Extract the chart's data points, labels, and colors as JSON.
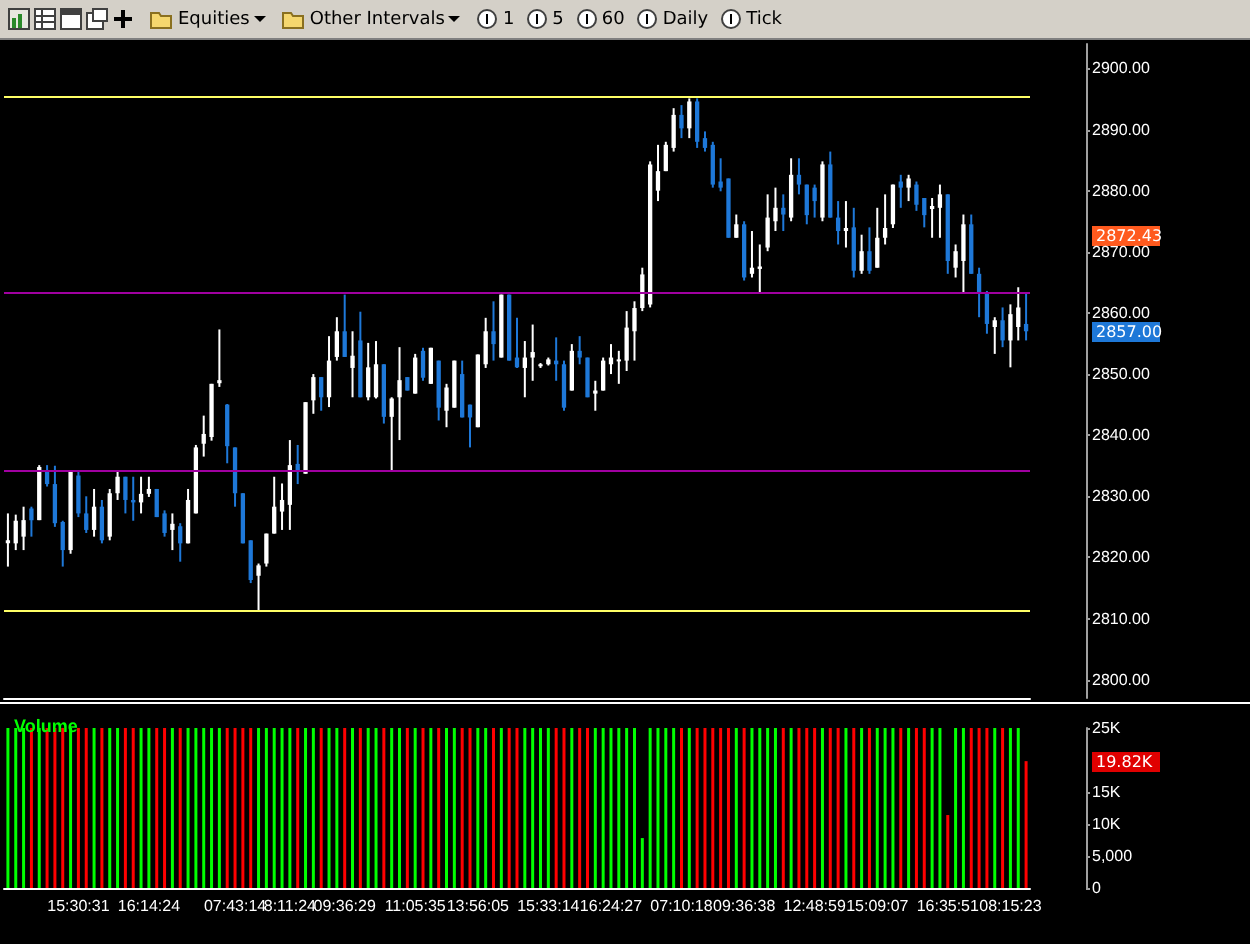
{
  "chart_data": [
    {
      "type": "candlestick",
      "categories": [
        null,
        null,
        null,
        null,
        null,
        null,
        null,
        null,
        null,
        null,
        null,
        null,
        null,
        null,
        null,
        null,
        null,
        null,
        null,
        null,
        null,
        null,
        null,
        null,
        null,
        null,
        null,
        null,
        null,
        null,
        null,
        null,
        null,
        null,
        null,
        null,
        null,
        null,
        null,
        null,
        null,
        null,
        null,
        null,
        null,
        null,
        null,
        null,
        null,
        null,
        null,
        null,
        null,
        null,
        null,
        null,
        null,
        null,
        null,
        null,
        null,
        null,
        null,
        null,
        null,
        null,
        null,
        null,
        null,
        null,
        null,
        null,
        null,
        null,
        null,
        null,
        null,
        null,
        null,
        null,
        null,
        null,
        null,
        null,
        null,
        null,
        null,
        null,
        null,
        null,
        null,
        null,
        null,
        null,
        null,
        null,
        null,
        null,
        null,
        null,
        null,
        null,
        null,
        null,
        null,
        null,
        null,
        null,
        null,
        null,
        null,
        null,
        null,
        null,
        null,
        null,
        null,
        null,
        null,
        null,
        null,
        null,
        null,
        null,
        null,
        null,
        null,
        null,
        null,
        null,
        null
      ],
      "ohlc": [
        [
          2822.3,
          2827.2,
          2818.5,
          2822.8
        ],
        [
          2822.3,
          2827,
          2821.2,
          2826
        ],
        [
          2823.4,
          2828.3,
          2821.2,
          2826.1
        ],
        [
          2828,
          2828.3,
          2823.4,
          2826.1
        ],
        [
          2826.1,
          2835.1,
          2826.1,
          2834.8
        ],
        [
          2834,
          2835.1,
          2831.6,
          2832
        ],
        [
          2832,
          2835,
          2825,
          2825.6
        ],
        [
          2825.8,
          2826,
          2818.5,
          2821.2
        ],
        [
          2821.2,
          2834,
          2820.6,
          2834
        ],
        [
          2833.4,
          2834,
          2826.6,
          2827.2
        ],
        [
          2827.2,
          2830,
          2824,
          2824.5
        ],
        [
          2824.5,
          2831.2,
          2823.4,
          2828.3
        ],
        [
          2828.3,
          2829.4,
          2822.3,
          2822.8
        ],
        [
          2823.4,
          2831.2,
          2822.8,
          2830.5
        ],
        [
          2830.5,
          2834,
          2829.4,
          2833.2
        ],
        [
          2833.2,
          2833.2,
          2827.2,
          2829.4
        ],
        [
          2829.4,
          2833.2,
          2826,
          2829
        ],
        [
          2829,
          2833.2,
          2827.2,
          2830.4
        ],
        [
          2830.4,
          2833.2,
          2829.9,
          2831.2
        ],
        [
          2831.2,
          2831.2,
          2826.6,
          2826.6
        ],
        [
          2827.2,
          2827.7,
          2823.4,
          2824
        ],
        [
          2824.5,
          2827.2,
          2821.2,
          2825.5
        ],
        [
          2825.1,
          2825.6,
          2819.3,
          2822.3
        ],
        [
          2822.3,
          2831.2,
          2822.3,
          2829.4
        ],
        [
          2827.2,
          2838.4,
          2827.2,
          2838
        ],
        [
          2838.6,
          2843.2,
          2836.5,
          2840.2
        ],
        [
          2839.7,
          2848.4,
          2839.1,
          2848.4
        ],
        [
          2848.5,
          2857.3,
          2847.9,
          2849
        ],
        [
          2845,
          2845.1,
          2835.4,
          2838.2
        ],
        [
          2838,
          2838,
          2828.3,
          2830.5
        ],
        [
          2830.5,
          2830.5,
          2822.3,
          2822.3
        ],
        [
          2822.8,
          2822.8,
          2815.8,
          2816.3
        ],
        [
          2817,
          2819,
          2811.4,
          2818.7
        ],
        [
          2819,
          2823.9,
          2818.5,
          2823.9
        ],
        [
          2823.9,
          2833.2,
          2823.9,
          2828.3
        ],
        [
          2827.5,
          2832.1,
          2824.5,
          2829.4
        ],
        [
          2828.6,
          2839.2,
          2824.5,
          2835.1
        ],
        [
          2835.3,
          2838.4,
          2832,
          2834
        ],
        [
          2833.7,
          2845.4,
          2833.7,
          2845.4
        ],
        [
          2845.7,
          2850,
          2843.5,
          2849.5
        ],
        [
          2849.5,
          2849.5,
          2844,
          2846.2
        ],
        [
          2846.2,
          2856.2,
          2844.6,
          2852.2
        ],
        [
          2852.8,
          2859.3,
          2852.2,
          2857
        ],
        [
          2857,
          2863,
          2852.8,
          2852.8
        ],
        [
          2851,
          2857,
          2846.2,
          2853
        ],
        [
          2855.5,
          2860.2,
          2846.2,
          2846.2
        ],
        [
          2846.2,
          2855.1,
          2845.7,
          2851.1
        ],
        [
          2846.2,
          2855.4,
          2846,
          2851.6
        ],
        [
          2851.6,
          2851.6,
          2841.9,
          2843
        ],
        [
          2843,
          2846.2,
          2834.2,
          2846
        ],
        [
          2846.2,
          2854.4,
          2839.2,
          2849
        ],
        [
          2849.5,
          2849.5,
          2847.3,
          2847.3
        ],
        [
          2846.8,
          2853.3,
          2846.8,
          2852.7
        ],
        [
          2853.8,
          2854.3,
          2848.9,
          2849.4
        ],
        [
          2848.4,
          2854.3,
          2848.4,
          2854.3
        ],
        [
          2852.2,
          2852.2,
          2842.4,
          2844.5
        ],
        [
          2844,
          2848.4,
          2841.3,
          2847.8
        ],
        [
          2844.5,
          2852.2,
          2844.5,
          2852.2
        ],
        [
          2850,
          2852.2,
          2842.9,
          2842.9
        ],
        [
          2845,
          2845,
          2838,
          2842.9
        ],
        [
          2841.3,
          2853.2,
          2841.3,
          2853.2
        ],
        [
          2851.6,
          2859.2,
          2851,
          2857
        ],
        [
          2857,
          2861.9,
          2852.2,
          2854.9
        ],
        [
          2852.7,
          2863,
          2852.7,
          2863
        ],
        [
          2863,
          2863,
          2852.2,
          2852.2
        ],
        [
          2852.7,
          2859.2,
          2851,
          2851.1
        ],
        [
          2851,
          2855.4,
          2846.2,
          2852.7
        ],
        [
          2852.7,
          2858.1,
          2848.9,
          2853.6
        ],
        [
          2851.3,
          2851.8,
          2851,
          2851.6
        ],
        [
          2851.6,
          2852.7,
          2851.4,
          2852.4
        ],
        [
          2852.2,
          2856,
          2848.9,
          2851.6
        ],
        [
          2851.6,
          2852.2,
          2844,
          2844.5
        ],
        [
          2847.3,
          2854.9,
          2847.3,
          2853.8
        ],
        [
          2853.8,
          2856.2,
          2851.6,
          2852.7
        ],
        [
          2852.7,
          2852.7,
          2846.2,
          2846.2
        ],
        [
          2846.8,
          2848.9,
          2844,
          2847.3
        ],
        [
          2847.3,
          2852.7,
          2847.3,
          2852.2
        ],
        [
          2851.6,
          2854.9,
          2850,
          2852.7
        ],
        [
          2852.2,
          2853.8,
          2848.4,
          2852.4
        ],
        [
          2852.2,
          2860.3,
          2850.5,
          2857.6
        ],
        [
          2857,
          2861.9,
          2852.2,
          2860.8
        ],
        [
          2860.8,
          2867.4,
          2860.3,
          2866.3
        ],
        [
          2861.4,
          2884.8,
          2860.9,
          2884.3
        ],
        [
          2880,
          2887.5,
          2878.3,
          2883.2
        ],
        [
          2883.2,
          2888,
          2883.2,
          2887.5
        ],
        [
          2887,
          2893.5,
          2886.4,
          2892.4
        ],
        [
          2892.4,
          2894,
          2888.6,
          2890.2
        ],
        [
          2890.2,
          2895.1,
          2888.6,
          2894.6
        ],
        [
          2894.6,
          2895.1,
          2887,
          2888
        ],
        [
          2888.6,
          2889.7,
          2886.4,
          2887
        ],
        [
          2887.5,
          2888,
          2880.5,
          2881
        ],
        [
          2881.5,
          2885.3,
          2879.9,
          2880.5
        ],
        [
          2882,
          2882,
          2872.3,
          2872.3
        ],
        [
          2872.3,
          2876.1,
          2872.3,
          2874.5
        ],
        [
          2874.5,
          2875,
          2865.3,
          2865.8
        ],
        [
          2866.4,
          2873.4,
          2865.8,
          2867.4
        ],
        [
          2867.2,
          2871.2,
          2863.1,
          2867.6
        ],
        [
          2870.7,
          2879.4,
          2870.1,
          2875.6
        ],
        [
          2875,
          2880.5,
          2873.4,
          2877.2
        ],
        [
          2877.2,
          2879.4,
          2873.4,
          2876.1
        ],
        [
          2875.6,
          2885.3,
          2875,
          2882.6
        ],
        [
          2882.6,
          2885.3,
          2879.4,
          2881
        ],
        [
          2881,
          2881,
          2874.5,
          2876
        ],
        [
          2880.5,
          2881,
          2875.6,
          2878.3
        ],
        [
          2875.6,
          2884.8,
          2875,
          2884.3
        ],
        [
          2884.3,
          2886.4,
          2875.6,
          2875.6
        ],
        [
          2875.6,
          2878.3,
          2871.2,
          2873.4
        ],
        [
          2873.4,
          2878.3,
          2870.7,
          2873.9
        ],
        [
          2874,
          2877.2,
          2865.8,
          2866.9
        ],
        [
          2866.9,
          2872.8,
          2866.4,
          2870.1
        ],
        [
          2870.1,
          2874,
          2866.4,
          2866.9
        ],
        [
          2867.4,
          2877.2,
          2867.4,
          2872.3
        ],
        [
          2872.3,
          2879.4,
          2871.2,
          2873.9
        ],
        [
          2874.5,
          2881,
          2873.9,
          2881
        ],
        [
          2881.5,
          2882.6,
          2877.2,
          2880.5
        ],
        [
          2880.5,
          2882.6,
          2878.3,
          2882
        ],
        [
          2881,
          2881.5,
          2876.7,
          2877.7
        ],
        [
          2878.8,
          2878.8,
          2874,
          2876
        ],
        [
          2877,
          2878.8,
          2872.3,
          2877.5
        ],
        [
          2877.2,
          2881,
          2872.3,
          2879.4
        ],
        [
          2879.4,
          2879.4,
          2866.4,
          2868.5
        ],
        [
          2867.4,
          2871.2,
          2865.8,
          2870.1
        ],
        [
          2868.5,
          2876.1,
          2863.1,
          2874.5
        ],
        [
          2874.5,
          2876.1,
          2866.4,
          2866.4
        ],
        [
          2866.4,
          2867.4,
          2859.3,
          2863.1
        ],
        [
          2863.1,
          2863.6,
          2856.6,
          2858.2
        ],
        [
          2857.7,
          2859.3,
          2853.3,
          2858.8
        ],
        [
          2858.8,
          2860.9,
          2854.4,
          2855.5
        ],
        [
          2855.5,
          2861.4,
          2851.1,
          2859.8
        ],
        [
          2857.7,
          2864.2,
          2855.5,
          2860.9
        ],
        [
          2858.2,
          2863.1,
          2855.5,
          2857
        ]
      ],
      "colors": [
        "#ffffff",
        "#ffffff",
        "#ffffff",
        "#1e78d8",
        "#ffffff",
        "#1e78d8",
        "#1e78d8",
        "#1e78d8",
        "#ffffff",
        "#1e78d8",
        "#1e78d8",
        "#ffffff",
        "#1e78d8",
        "#ffffff",
        "#ffffff",
        "#1e78d8",
        "#1e78d8",
        "#ffffff",
        "#ffffff",
        "#1e78d8",
        "#1e78d8",
        "#ffffff",
        "#1e78d8",
        "#ffffff",
        "#ffffff",
        "#ffffff",
        "#ffffff",
        "#ffffff",
        "#1e78d8",
        "#1e78d8",
        "#1e78d8",
        "#1e78d8",
        "#ffffff",
        "#ffffff",
        "#ffffff",
        "#ffffff",
        "#ffffff",
        "#1e78d8",
        "#ffffff",
        "#ffffff",
        "#1e78d8",
        "#ffffff",
        "#ffffff",
        "#1e78d8",
        "#ffffff",
        "#1e78d8",
        "#ffffff",
        "#ffffff",
        "#1e78d8",
        "#ffffff",
        "#ffffff",
        "#1e78d8",
        "#ffffff",
        "#1e78d8",
        "#ffffff",
        "#1e78d8",
        "#ffffff",
        "#ffffff",
        "#1e78d8",
        "#1e78d8",
        "#ffffff",
        "#ffffff",
        "#1e78d8",
        "#ffffff",
        "#1e78d8",
        "#1e78d8",
        "#ffffff",
        "#ffffff",
        "#ffffff",
        "#ffffff",
        "#1e78d8",
        "#1e78d8",
        "#ffffff",
        "#1e78d8",
        "#1e78d8",
        "#ffffff",
        "#ffffff",
        "#ffffff",
        "#ffffff",
        "#ffffff",
        "#ffffff",
        "#ffffff",
        "#ffffff",
        "#ffffff",
        "#ffffff",
        "#ffffff",
        "#1e78d8",
        "#ffffff",
        "#1e78d8",
        "#1e78d8",
        "#1e78d8",
        "#1e78d8",
        "#1e78d8",
        "#ffffff",
        "#1e78d8",
        "#ffffff",
        "#ffffff",
        "#ffffff",
        "#ffffff",
        "#1e78d8",
        "#ffffff",
        "#1e78d8",
        "#1e78d8",
        "#1e78d8",
        "#ffffff",
        "#1e78d8",
        "#1e78d8",
        "#ffffff",
        "#1e78d8",
        "#ffffff",
        "#1e78d8",
        "#ffffff",
        "#ffffff",
        "#ffffff",
        "#1e78d8",
        "#ffffff",
        "#1e78d8",
        "#1e78d8",
        "#ffffff",
        "#ffffff",
        "#1e78d8",
        "#ffffff",
        "#ffffff",
        "#1e78d8",
        "#1e78d8",
        "#1e78d8",
        "#ffffff",
        "#1e78d8",
        "#ffffff",
        "#ffffff",
        "#1e78d8"
      ],
      "ylim": [
        2797,
        2904
      ],
      "yticks": [
        {
          "value": 2800,
          "label": "2800.00"
        },
        {
          "value": 2810,
          "label": "2810.00"
        },
        {
          "value": 2820,
          "label": "2820.00"
        },
        {
          "value": 2830,
          "label": "2830.00"
        },
        {
          "value": 2840,
          "label": "2840.00"
        },
        {
          "value": 2850,
          "label": "2850.00"
        },
        {
          "value": 2860,
          "label": "2860.00"
        },
        {
          "value": 2870,
          "label": "2870.00"
        },
        {
          "value": 2880,
          "label": "2880.00"
        },
        {
          "value": 2890,
          "label": "2890.00"
        },
        {
          "value": 2900,
          "label": "2900.00"
        }
      ],
      "tick_labels": "y",
      "ref_lines": [
        {
          "axis": "y",
          "value": 2895.4,
          "color": "#ffff66"
        },
        {
          "axis": "y",
          "value": 2863.2,
          "color": "#a000a0"
        },
        {
          "axis": "y",
          "value": 2834.2,
          "color": "#a000a0"
        },
        {
          "axis": "y",
          "value": 2811.4,
          "color": "#ffff66"
        }
      ],
      "annotations": [
        "Equities",
        "Other Intervals",
        "1",
        "5",
        "60",
        "Daily",
        "Tick",
        "2872.43",
        "2857.00"
      ]
    },
    {
      "type": "bar",
      "title": "Volume",
      "categories": [
        null,
        null,
        null,
        null,
        null,
        null,
        null,
        null,
        null,
        "15:30:31",
        null,
        null,
        null,
        null,
        null,
        null,
        null,
        null,
        "16:14:24",
        null,
        null,
        null,
        null,
        null,
        null,
        null,
        null,
        null,
        null,
        "07:43:14",
        null,
        null,
        null,
        null,
        null,
        null,
        "8:11:24",
        null,
        null,
        null,
        null,
        null,
        null,
        "09:36:29",
        null,
        null,
        null,
        null,
        null,
        null,
        null,
        null,
        "11:05:35",
        null,
        null,
        null,
        null,
        null,
        null,
        null,
        "13:56:05",
        null,
        null,
        null,
        null,
        null,
        null,
        null,
        null,
        "15:33:14",
        null,
        null,
        null,
        null,
        null,
        null,
        null,
        "16:24:27",
        null,
        null,
        null,
        null,
        null,
        null,
        null,
        null,
        "07:10:18",
        null,
        null,
        null,
        null,
        null,
        null,
        null,
        "09:36:38",
        null,
        null,
        null,
        null,
        null,
        null,
        null,
        null,
        "12:48:59",
        null,
        null,
        null,
        null,
        null,
        null,
        null,
        "15:09:07",
        null,
        null,
        null,
        null,
        null,
        null,
        null,
        null,
        "16:35:51",
        null,
        null,
        null,
        null,
        null,
        null,
        null,
        "08:15:23",
        null,
        null
      ],
      "values": [
        25000,
        25000,
        25000,
        25000,
        25000,
        25000,
        25000,
        25000,
        25000,
        25000,
        25000,
        25000,
        25000,
        25000,
        25000,
        25000,
        25000,
        25000,
        25000,
        25000,
        25000,
        25000,
        25000,
        25000,
        25000,
        25000,
        25000,
        25000,
        25000,
        25000,
        25000,
        25000,
        25000,
        25000,
        25000,
        25000,
        25000,
        25000,
        25000,
        25000,
        25000,
        25000,
        25000,
        25000,
        25000,
        25000,
        25000,
        25000,
        25000,
        25000,
        25000,
        25000,
        25000,
        25000,
        25000,
        25000,
        25000,
        25000,
        25000,
        25000,
        25000,
        25000,
        25000,
        25000,
        25000,
        25000,
        25000,
        25000,
        25000,
        25000,
        25000,
        25000,
        25000,
        25000,
        25000,
        25000,
        25000,
        25000,
        25000,
        25000,
        25000,
        7800,
        25000,
        25000,
        25000,
        25000,
        25000,
        25000,
        25000,
        25000,
        25000,
        25000,
        25000,
        25000,
        25000,
        25000,
        25000,
        25000,
        25000,
        25000,
        25000,
        25000,
        25000,
        25000,
        25000,
        25000,
        25000,
        25000,
        25000,
        25000,
        25000,
        25000,
        25000,
        25000,
        25000,
        25000,
        25000,
        25000,
        25000,
        25000,
        11400,
        25000,
        25000,
        25000,
        25000,
        25000,
        25000,
        25000,
        25000,
        25000,
        19820
      ],
      "colors": [
        "#00ff00",
        "#00ff00",
        "#00ff00",
        "#ff0000",
        "#00ff00",
        "#ff0000",
        "#ff0000",
        "#ff0000",
        "#00ff00",
        "#ff0000",
        "#ff0000",
        "#00ff00",
        "#ff0000",
        "#00ff00",
        "#00ff00",
        "#ff0000",
        "#ff0000",
        "#00ff00",
        "#00ff00",
        "#ff0000",
        "#ff0000",
        "#00ff00",
        "#ff0000",
        "#00ff00",
        "#00ff00",
        "#00ff00",
        "#00ff00",
        "#00ff00",
        "#ff0000",
        "#ff0000",
        "#ff0000",
        "#ff0000",
        "#00ff00",
        "#00ff00",
        "#00ff00",
        "#00ff00",
        "#00ff00",
        "#ff0000",
        "#00ff00",
        "#00ff00",
        "#ff0000",
        "#00ff00",
        "#00ff00",
        "#ff0000",
        "#00ff00",
        "#ff0000",
        "#00ff00",
        "#00ff00",
        "#ff0000",
        "#00ff00",
        "#00ff00",
        "#ff0000",
        "#00ff00",
        "#ff0000",
        "#00ff00",
        "#ff0000",
        "#00ff00",
        "#00ff00",
        "#ff0000",
        "#ff0000",
        "#00ff00",
        "#00ff00",
        "#ff0000",
        "#00ff00",
        "#ff0000",
        "#ff0000",
        "#00ff00",
        "#00ff00",
        "#00ff00",
        "#00ff00",
        "#ff0000",
        "#ff0000",
        "#00ff00",
        "#ff0000",
        "#ff0000",
        "#00ff00",
        "#00ff00",
        "#00ff00",
        "#00ff00",
        "#00ff00",
        "#00ff00",
        "#00ff00",
        "#00ff00",
        "#00ff00",
        "#00ff00",
        "#00ff00",
        "#ff0000",
        "#00ff00",
        "#ff0000",
        "#ff0000",
        "#ff0000",
        "#ff0000",
        "#ff0000",
        "#00ff00",
        "#ff0000",
        "#00ff00",
        "#00ff00",
        "#00ff00",
        "#00ff00",
        "#ff0000",
        "#00ff00",
        "#ff0000",
        "#ff0000",
        "#ff0000",
        "#00ff00",
        "#ff0000",
        "#ff0000",
        "#00ff00",
        "#ff0000",
        "#00ff00",
        "#ff0000",
        "#00ff00",
        "#00ff00",
        "#00ff00",
        "#ff0000",
        "#00ff00",
        "#ff0000",
        "#ff0000",
        "#00ff00",
        "#00ff00",
        "#ff0000",
        "#00ff00",
        "#00ff00",
        "#ff0000",
        "#ff0000",
        "#ff0000",
        "#00ff00",
        "#ff0000",
        "#00ff00",
        "#00ff00",
        "#ff0000"
      ],
      "ylim": [
        0,
        25000
      ],
      "yticks": [
        0,
        {
          "value": 5000,
          "label": "5,000"
        },
        {
          "value": 10000,
          "label": "10K"
        },
        {
          "value": 15000,
          "label": "15K"
        },
        {
          "value": 25000,
          "label": "25K"
        }
      ],
      "annotations": [
        "19.82K"
      ]
    }
  ]
}
